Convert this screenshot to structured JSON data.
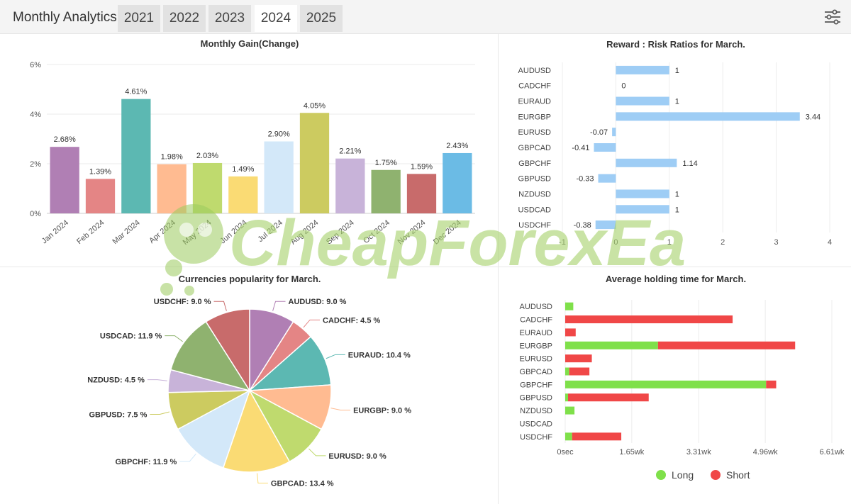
{
  "header": {
    "title": "Monthly Analytics",
    "tabs": [
      {
        "label": "2021",
        "active": false
      },
      {
        "label": "2022",
        "active": false
      },
      {
        "label": "2023",
        "active": false
      },
      {
        "label": "2024",
        "active": true
      },
      {
        "label": "2025",
        "active": false
      }
    ],
    "settings_icon": "sliders-icon"
  },
  "watermark": "CheapForexEa",
  "chart_data": [
    {
      "type": "bar",
      "title": "Monthly Gain(Change)",
      "categories": [
        "Jan 2024",
        "Feb 2024",
        "Mar 2024",
        "Apr 2024",
        "May 2024",
        "Jun 2024",
        "Jul 2024",
        "Aug 2024",
        "Sep 2024",
        "Oct 2024",
        "Nov 2024",
        "Dec 2024"
      ],
      "values": [
        2.68,
        1.39,
        4.61,
        1.98,
        2.03,
        1.49,
        2.9,
        4.05,
        2.21,
        1.75,
        1.59,
        2.43
      ],
      "value_labels": [
        "2.68%",
        "1.39%",
        "4.61%",
        "1.98%",
        "2.03%",
        "1.49%",
        "2.90%",
        "4.05%",
        "2.21%",
        "1.75%",
        "1.59%",
        "2.43%"
      ],
      "colors": [
        "#b07fb4",
        "#e48585",
        "#5cb8b2",
        "#ffbb91",
        "#bfda6e",
        "#fadb74",
        "#d3e8f9",
        "#cccb60",
        "#c8b3d9",
        "#8fb26f",
        "#c86b6b",
        "#6bbbe5"
      ],
      "ylim": [
        0,
        6
      ],
      "yticks": [
        "0%",
        "2%",
        "4%",
        "6%"
      ],
      "grid": true
    },
    {
      "type": "bar",
      "orientation": "horizontal",
      "title": "Reward : Risk Ratios for March.",
      "categories": [
        "AUDUSD",
        "CADCHF",
        "EURAUD",
        "EURGBP",
        "EURUSD",
        "GBPCAD",
        "GBPCHF",
        "GBPUSD",
        "NZDUSD",
        "USDCAD",
        "USDCHF"
      ],
      "values": [
        1,
        0,
        1,
        3.44,
        -0.07,
        -0.41,
        1.14,
        -0.33,
        1,
        1,
        -0.38
      ],
      "value_labels": [
        "1",
        "0",
        "1",
        "3.44",
        "-0.07",
        "-0.41",
        "1.14",
        "-0.33",
        "1",
        "1",
        "-0.38"
      ],
      "color": "#9ecdf5",
      "xlim": [
        -1,
        4
      ],
      "xticks": [
        "-1",
        "0",
        "1",
        "2",
        "3",
        "4"
      ],
      "grid": true
    },
    {
      "type": "pie",
      "title": "Currencies popularity for March.",
      "slices": [
        {
          "label": "AUDUSD",
          "value": 9.0,
          "text": "AUDUSD: 9.0 %",
          "color": "#b07fb4"
        },
        {
          "label": "CADCHF",
          "value": 4.5,
          "text": "CADCHF: 4.5 %",
          "color": "#e48585"
        },
        {
          "label": "EURAUD",
          "value": 10.4,
          "text": "EURAUD: 10.4 %",
          "color": "#5cb8b2"
        },
        {
          "label": "EURGBP",
          "value": 9.0,
          "text": "EURGBP: 9.0 %",
          "color": "#ffbb91"
        },
        {
          "label": "EURUSD",
          "value": 9.0,
          "text": "EURUSD: 9.0 %",
          "color": "#bfda6e"
        },
        {
          "label": "GBPCAD",
          "value": 13.4,
          "text": "GBPCAD: 13.4 %",
          "color": "#fadb74"
        },
        {
          "label": "GBPCHF",
          "value": 11.9,
          "text": "GBPCHF: 11.9 %",
          "color": "#d3e8f9"
        },
        {
          "label": "GBPUSD",
          "value": 7.5,
          "text": "GBPUSD: 7.5 %",
          "color": "#cccb60"
        },
        {
          "label": "NZDUSD",
          "value": 4.5,
          "text": "NZDUSD: 4.5 %",
          "color": "#c8b3d9"
        },
        {
          "label": "USDCAD",
          "value": 11.9,
          "text": "USDCAD: 11.9 %",
          "color": "#8fb26f"
        },
        {
          "label": "USDCHF",
          "value": 9.0,
          "text": "USDCHF: 9.0 %",
          "color": "#c86b6b"
        }
      ]
    },
    {
      "type": "bar",
      "orientation": "horizontal",
      "stacked": true,
      "title": "Average holding time for March.",
      "unit": "weeks",
      "categories": [
        "AUDUSD",
        "CADCHF",
        "EURAUD",
        "EURGBP",
        "EURUSD",
        "GBPCAD",
        "GBPCHF",
        "GBPUSD",
        "NZDUSD",
        "USDCAD",
        "USDCHF"
      ],
      "series": [
        {
          "name": "Long",
          "color": "#7fe04a",
          "values": [
            0.2,
            0,
            0,
            2.3,
            0,
            0.1,
            4.98,
            0.07,
            0.23,
            0,
            0.17
          ]
        },
        {
          "name": "Short",
          "color": "#f04747",
          "values": [
            0,
            4.15,
            0.26,
            3.4,
            0.66,
            0.5,
            0.25,
            2.0,
            0,
            0,
            1.22
          ]
        }
      ],
      "xlim": [
        0,
        6.61
      ],
      "xticks": [
        {
          "value": 0,
          "label": "0sec"
        },
        {
          "value": 1.65,
          "label": "1.65wk"
        },
        {
          "value": 3.31,
          "label": "3.31wk"
        },
        {
          "value": 4.96,
          "label": "4.96wk"
        },
        {
          "value": 6.61,
          "label": "6.61wk"
        }
      ],
      "legend": {
        "position": "bottom",
        "items": [
          "Long",
          "Short"
        ]
      }
    }
  ]
}
